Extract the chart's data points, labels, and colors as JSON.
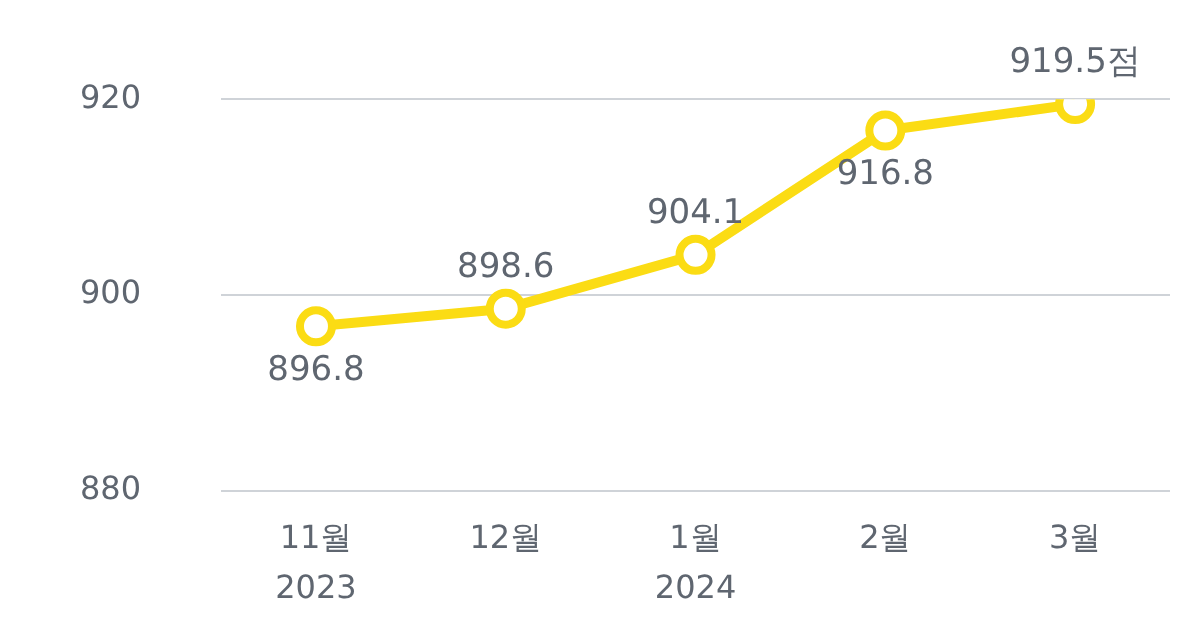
{
  "chart_data": {
    "type": "line",
    "categories": [
      "11월\n2023",
      "12월",
      "1월\n2024",
      "2월",
      "3월"
    ],
    "series": [
      {
        "color": "#fbdc14",
        "values": [
          896.8,
          898.6,
          904.1,
          916.8,
          919.5
        ],
        "value_labels": [
          "896.8",
          "898.6",
          "904.1",
          "916.8",
          "919.5점"
        ]
      }
    ],
    "ylim": [
      880,
      920
    ],
    "yticks": [
      880,
      900,
      920
    ],
    "grid": "y",
    "marker": "circle",
    "line_style": "solid"
  }
}
